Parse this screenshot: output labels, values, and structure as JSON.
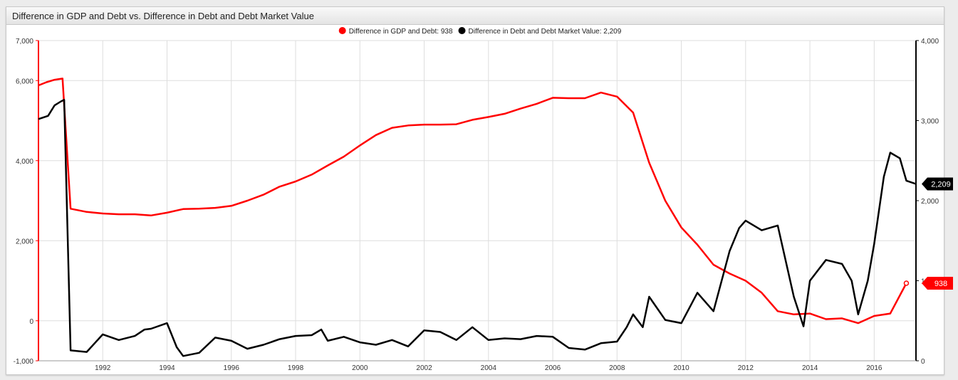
{
  "window": {
    "title": "Difference in GDP and Debt vs. Difference in Debt and Debt Market Value"
  },
  "colors": {
    "series1": "#ff0000",
    "series2": "#000000",
    "grid": "#dddddd",
    "axis1": "#ff0000",
    "axis2": "#000000"
  },
  "chart_data": {
    "type": "line",
    "title": "Difference in GDP and Debt vs. Difference in Debt and Debt Market Value",
    "legend_position": "top-center",
    "grid": true,
    "x_range": [
      1990.0,
      2017.3
    ],
    "x_ticks": [
      "1992",
      "1994",
      "1996",
      "1998",
      "2000",
      "2002",
      "2004",
      "2006",
      "2008",
      "2010",
      "2012",
      "2014",
      "2016"
    ],
    "y_left": {
      "range": [
        -1000,
        7000
      ],
      "ticks": [
        "-1,000",
        "0",
        "2,000",
        "4,000",
        "6,000",
        "7,000"
      ],
      "tick_values": [
        -1000,
        0,
        2000,
        4000,
        6000,
        7000
      ]
    },
    "y_right": {
      "range": [
        0,
        4000
      ],
      "ticks": [
        "0",
        "1,000",
        "2,000",
        "3,000",
        "4,000"
      ],
      "tick_values": [
        0,
        1000,
        2000,
        3000,
        4000
      ]
    },
    "series": [
      {
        "name": "Difference in GDP and Debt",
        "legend": "Difference in GDP and Debt: 938",
        "axis": "left",
        "last_label": "938",
        "x": [
          1990.0,
          1990.25,
          1990.5,
          1990.75,
          1991.0,
          1991.5,
          1992.0,
          1992.5,
          1993.0,
          1993.5,
          1994.0,
          1994.5,
          1995.0,
          1995.5,
          1996.0,
          1996.5,
          1997.0,
          1997.5,
          1998.0,
          1998.5,
          1999.0,
          1999.5,
          2000.0,
          2000.5,
          2001.0,
          2001.5,
          2002.0,
          2002.5,
          2003.0,
          2003.5,
          2004.0,
          2004.5,
          2005.0,
          2005.5,
          2006.0,
          2006.5,
          2007.0,
          2007.5,
          2008.0,
          2008.5,
          2009.0,
          2009.5,
          2010.0,
          2010.5,
          2011.0,
          2011.5,
          2012.0,
          2012.5,
          2013.0,
          2013.5,
          2014.0,
          2014.5,
          2015.0,
          2015.5,
          2016.0,
          2016.5,
          2017.0
        ],
        "values": [
          5880,
          5960,
          6020,
          6050,
          2800,
          2720,
          2680,
          2660,
          2660,
          2630,
          2700,
          2790,
          2800,
          2820,
          2870,
          3000,
          3150,
          3350,
          3480,
          3650,
          3880,
          4100,
          4380,
          4640,
          4820,
          4880,
          4900,
          4900,
          4910,
          5020,
          5090,
          5170,
          5300,
          5420,
          5570,
          5560,
          5560,
          5700,
          5600,
          5200,
          3950,
          3000,
          2330,
          1900,
          1400,
          1180,
          1000,
          700,
          240,
          160,
          180,
          40,
          60,
          -60,
          120,
          180,
          938
        ]
      },
      {
        "name": "Difference in Debt and Debt Market Value",
        "legend": "Difference in Debt and Debt Market Value: 2,209",
        "axis": "right",
        "last_label": "2,209",
        "x": [
          1990.0,
          1990.3,
          1990.5,
          1990.7,
          1990.8,
          1991.0,
          1991.5,
          1992.0,
          1992.5,
          1993.0,
          1993.3,
          1993.5,
          1994.0,
          1994.3,
          1994.5,
          1995.0,
          1995.5,
          1996.0,
          1996.5,
          1997.0,
          1997.5,
          1998.0,
          1998.5,
          1998.8,
          1999.0,
          1999.5,
          2000.0,
          2000.5,
          2001.0,
          2001.5,
          2002.0,
          2002.5,
          2003.0,
          2003.5,
          2004.0,
          2004.5,
          2005.0,
          2005.5,
          2006.0,
          2006.5,
          2007.0,
          2007.5,
          2008.0,
          2008.3,
          2008.5,
          2008.8,
          2009.0,
          2009.5,
          2010.0,
          2010.5,
          2011.0,
          2011.5,
          2011.8,
          2012.0,
          2012.5,
          2013.0,
          2013.5,
          2013.8,
          2014.0,
          2014.5,
          2015.0,
          2015.3,
          2015.5,
          2015.8,
          2016.0,
          2016.3,
          2016.5,
          2016.8,
          2017.0,
          2017.3
        ],
        "values": [
          3020,
          3060,
          3190,
          3240,
          3260,
          130,
          110,
          330,
          260,
          310,
          390,
          400,
          470,
          170,
          60,
          100,
          290,
          250,
          150,
          200,
          270,
          310,
          320,
          390,
          250,
          300,
          230,
          200,
          260,
          180,
          380,
          360,
          260,
          420,
          260,
          280,
          270,
          310,
          300,
          160,
          140,
          220,
          240,
          420,
          580,
          420,
          800,
          510,
          470,
          850,
          620,
          1370,
          1660,
          1750,
          1630,
          1690,
          800,
          430,
          1000,
          1260,
          1210,
          1000,
          580,
          1000,
          1460,
          2300,
          2600,
          2530,
          2250,
          2209
        ]
      }
    ]
  }
}
